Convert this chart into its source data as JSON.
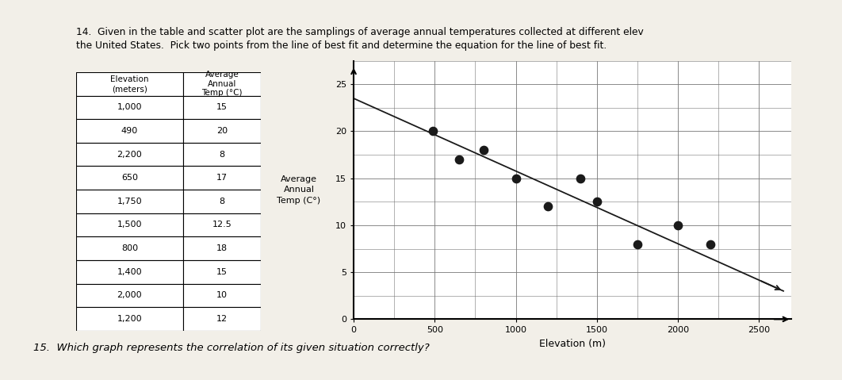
{
  "scatter_x": [
    1000,
    490,
    2200,
    650,
    1750,
    1500,
    800,
    1400,
    2000,
    1200
  ],
  "scatter_y": [
    15,
    20,
    8,
    17,
    8,
    12.5,
    18,
    15,
    10,
    12
  ],
  "best_fit_x": [
    0,
    2650
  ],
  "best_fit_y": [
    23.5,
    3.0
  ],
  "xlabel": "Elevation (m)",
  "ylabel_text": "Average\nAnnual\nTemp (C°)",
  "xlim": [
    0,
    2700
  ],
  "ylim": [
    0,
    27
  ],
  "xticks": [
    0,
    500,
    1000,
    1500,
    2000,
    2500
  ],
  "yticks": [
    0,
    5,
    10,
    15,
    20,
    25
  ],
  "dot_color": "#1a1a1a",
  "dot_size": 55,
  "line_color": "#1a1a1a",
  "line_width": 1.3,
  "grid_color": "#777777",
  "background_color": "#e8e4dc",
  "page_color": "#f2efe8",
  "table_elevation": [
    1000,
    490,
    2200,
    650,
    1750,
    1500,
    800,
    1400,
    2000,
    1200
  ],
  "table_temp": [
    "15",
    "20",
    "8",
    "17",
    "8",
    "12.5",
    "18",
    "15",
    "10",
    "12"
  ],
  "title_text": "14.  Given in the table and scatter plot are the samplings of average annual temperatures collected at different elev\nthe United States.  Pick two points from the line of best fit and determine the equation for the line of best fit.",
  "question15_text": "15.  Which graph represents the correlation of its given situation correctly?",
  "col1_header_line1": "Elevation",
  "col1_header_line2": "(meters)",
  "col2_header_line1": "Average",
  "col2_header_line2": "Annual",
  "col2_header_line3": "Temp (°C)"
}
